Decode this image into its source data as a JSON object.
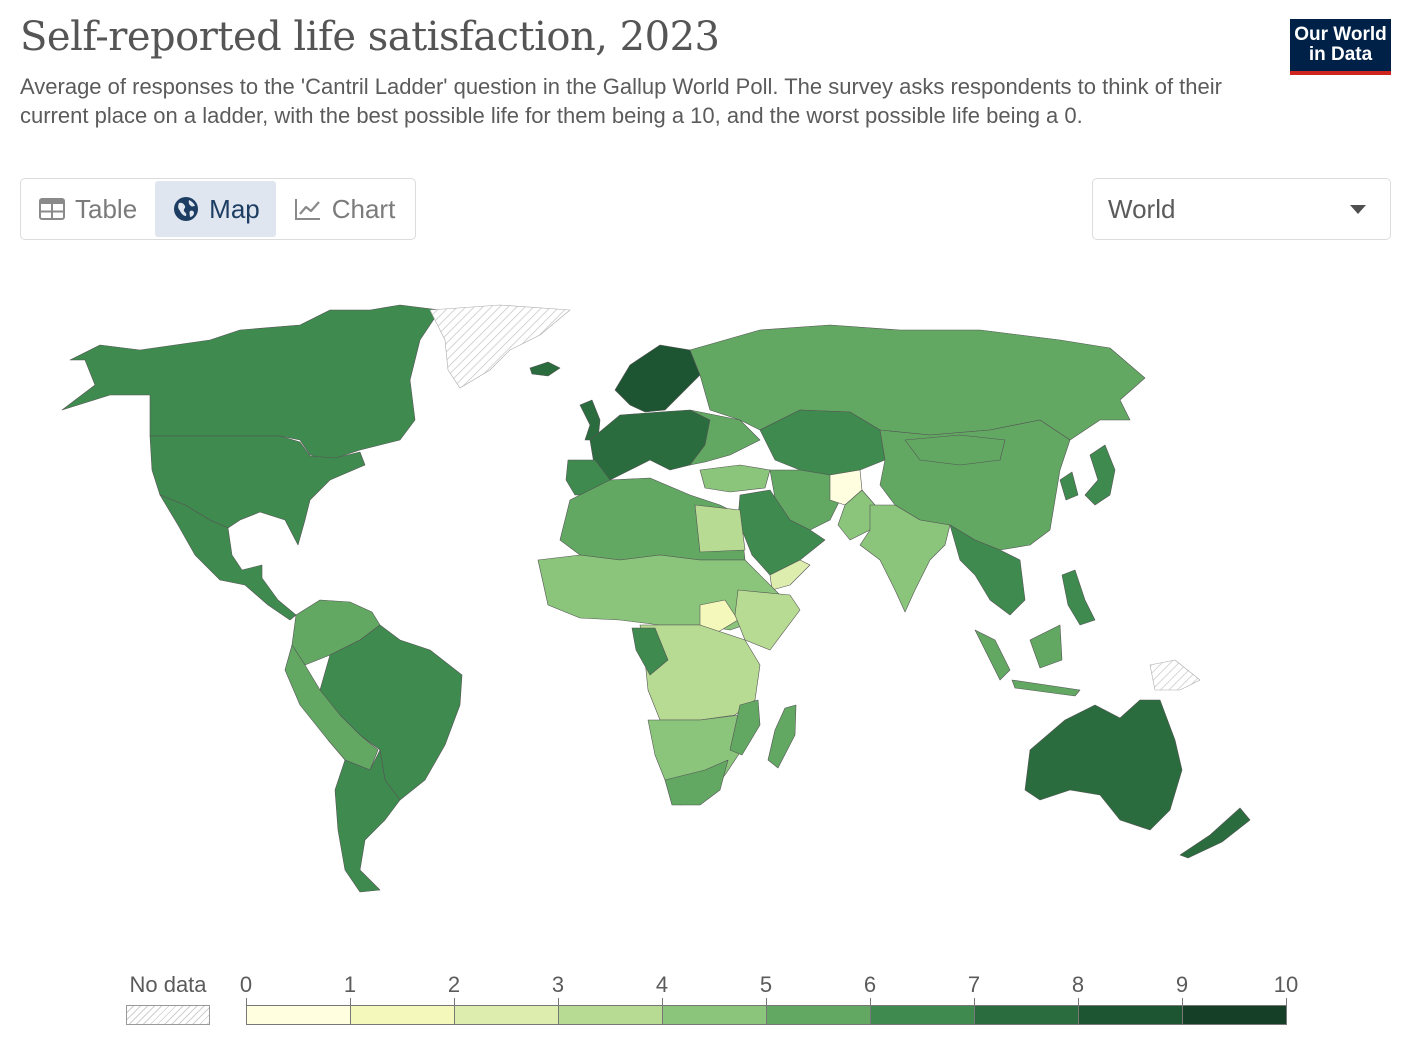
{
  "header": {
    "title": "Self-reported life satisfaction, 2023",
    "subtitle": "Average of responses to the 'Cantril Ladder' question in the Gallup World Poll. The survey asks respondents to think of their current place on a ladder, with the best possible life for them being a 10, and the worst possible life being a 0.",
    "logo_line1": "Our World",
    "logo_line2": "in Data"
  },
  "tabs": [
    {
      "label": "Table",
      "icon": "table-icon",
      "active": false
    },
    {
      "label": "Map",
      "icon": "globe-icon",
      "active": true
    },
    {
      "label": "Chart",
      "icon": "line-chart-icon",
      "active": false
    }
  ],
  "region_select": {
    "value": "World"
  },
  "legend": {
    "no_data_label": "No data",
    "ticks": [
      "0",
      "1",
      "2",
      "3",
      "4",
      "5",
      "6",
      "7",
      "8",
      "9",
      "10"
    ],
    "colors": [
      "#ffffe0",
      "#f4f9bb",
      "#dcedae",
      "#b7db93",
      "#8ac57b",
      "#62a863",
      "#3f8a4f",
      "#2a6c3e",
      "#1d5532",
      "#153f27"
    ]
  },
  "chart_data": {
    "type": "choropleth",
    "year": "2023",
    "scale_min": 0,
    "scale_max": 10,
    "bins": [
      [
        0,
        1
      ],
      [
        1,
        2
      ],
      [
        2,
        3
      ],
      [
        3,
        4
      ],
      [
        4,
        5
      ],
      [
        5,
        6
      ],
      [
        6,
        7
      ],
      [
        7,
        8
      ],
      [
        8,
        9
      ],
      [
        9,
        10
      ]
    ],
    "no_data_color": "hatched-grey"
  }
}
